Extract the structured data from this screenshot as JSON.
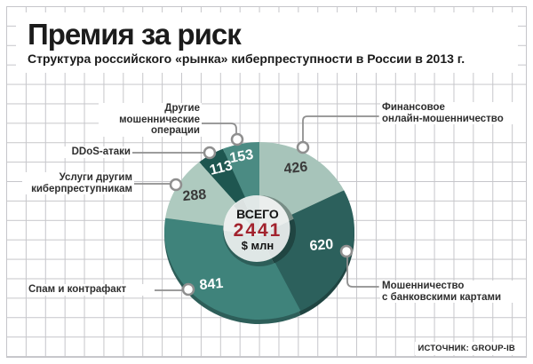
{
  "header": {
    "title": "Премия за риск",
    "subtitle": "Структура российского «рынка» киберпреступности в России в 2013 г."
  },
  "source": "ИСТОЧНИК: GROUP-IB",
  "palette": {
    "grid_line": "#c6c6ca",
    "accent_red": "#a2232e",
    "leader_line": "#8f8f8f",
    "label_text": "#2e2e2e"
  },
  "chart_data": {
    "type": "pie",
    "donut": true,
    "title": "Премия за риск",
    "subtitle": "Структура российского «рынка» киберпреступности в России в 2013 г.",
    "unit": "$ млн",
    "total": 2441,
    "start_angle_deg": 0,
    "direction": "clockwise",
    "legend_position": "callouts",
    "center": {
      "label": "ВСЕГО",
      "value": "2441",
      "unit": "$ млн",
      "value_color": "#a2232e"
    },
    "segments": [
      {
        "label": "Финансовое\nонлайн-мошенничество",
        "value": 426,
        "color": "#a7c4ba",
        "value_text_color": "#3a3a3a"
      },
      {
        "label": "Мошенничество\nс банковскими картами",
        "value": 620,
        "color": "#2c605c",
        "value_text_color": "#ffffff"
      },
      {
        "label": "Спам и контрафакт",
        "value": 841,
        "color": "#3f837b",
        "value_text_color": "#ffffff"
      },
      {
        "label": "Услуги другим\nкиберпреступникам",
        "value": 288,
        "color": "#aecabf",
        "value_text_color": "#3a3a3a"
      },
      {
        "label": "DDoS-атаки",
        "value": 113,
        "color": "#1e5650",
        "value_text_color": "#ffffff"
      },
      {
        "label": "Другие\nмошеннические\nоперации",
        "value": 153,
        "color": "#4b8b83",
        "value_text_color": "#ffffff"
      }
    ],
    "source": "ИСТОЧНИК: GROUP-IB"
  }
}
